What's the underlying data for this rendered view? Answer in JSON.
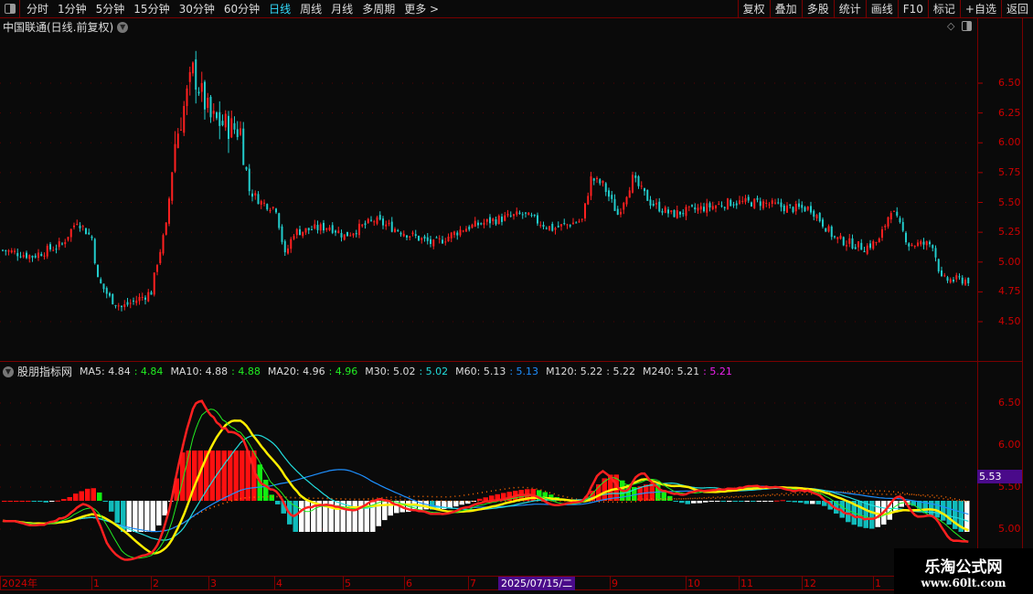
{
  "toolbar": {
    "periods": [
      "分时",
      "1分钟",
      "5分钟",
      "15分钟",
      "30分钟",
      "60分钟",
      "日线",
      "周线",
      "月线",
      "多周期",
      "更多 >"
    ],
    "active": "日线",
    "buttons": [
      "复权",
      "叠加",
      "多股",
      "统计",
      "画线",
      "F10",
      "标记",
      "+自选",
      "返回"
    ]
  },
  "title": "中国联通(日线.前复权)",
  "indicator": {
    "name": "股朋指标网",
    "items": [
      {
        "label": "MA5: 4.84",
        "value": ": 4.84",
        "color": "#22ee22"
      },
      {
        "label": "MA10: 4.88",
        "value": ": 4.88",
        "color": "#22ee22"
      },
      {
        "label": "MA20: 4.96",
        "value": ": 4.96",
        "color": "#22ee22"
      },
      {
        "label": "M30: 5.02",
        "value": ": 5.02",
        "color": "#22dddd"
      },
      {
        "label": "M60: 5.13",
        "value": ": 5.13",
        "color": "#1e90ff"
      },
      {
        "label": "M120: 5.22",
        "value": ": 5.22",
        "color": "#dddddd"
      },
      {
        "label": "M240: 5.21",
        "value": ": 5.21",
        "color": "#ee22ee"
      }
    ]
  },
  "price_axis": [
    "6.50",
    "6.25",
    "6.00",
    "5.75",
    "5.50",
    "5.25",
    "5.00",
    "4.75",
    "4.50"
  ],
  "ind_axis": [
    "6.50",
    "6.00",
    "5.50",
    "5.00"
  ],
  "current_price": "5.53",
  "time_axis": {
    "labels": [
      "2024年",
      "1",
      "2",
      "3",
      "4",
      "5",
      "6",
      "7",
      "9",
      "10",
      "11",
      "12",
      "1"
    ],
    "current_date": "2025/07/15/二"
  },
  "watermark": {
    "name": "乐淘公式网",
    "url": "www.60lt.com"
  },
  "colors": {
    "up": "#ff2020",
    "down": "#22cccc",
    "grid": "#7a0000",
    "axis_text": "#cc0000",
    "highlight": "#4a0a8a"
  },
  "chart_data": {
    "type": "candlestick",
    "security": "中国联通",
    "ylim": [
      4.4,
      6.8
    ],
    "close_trend": [
      [
        0,
        5.1
      ],
      [
        10,
        5.05
      ],
      [
        20,
        5.15
      ],
      [
        25,
        5.35
      ],
      [
        30,
        5.2
      ],
      [
        32,
        4.85
      ],
      [
        36,
        4.7
      ],
      [
        40,
        4.62
      ],
      [
        48,
        4.72
      ],
      [
        50,
        4.75
      ],
      [
        52,
        5.0
      ],
      [
        55,
        5.3
      ],
      [
        58,
        6.0
      ],
      [
        61,
        6.3
      ],
      [
        64,
        6.6
      ],
      [
        67,
        6.4
      ],
      [
        70,
        6.2
      ],
      [
        75,
        6.15
      ],
      [
        80,
        6.1
      ],
      [
        83,
        5.6
      ],
      [
        87,
        5.5
      ],
      [
        92,
        5.45
      ],
      [
        95,
        5.05
      ],
      [
        98,
        5.25
      ],
      [
        110,
        5.3
      ],
      [
        115,
        5.22
      ],
      [
        125,
        5.35
      ],
      [
        135,
        5.25
      ],
      [
        145,
        5.15
      ],
      [
        155,
        5.28
      ],
      [
        165,
        5.35
      ],
      [
        175,
        5.4
      ],
      [
        185,
        5.28
      ],
      [
        195,
        5.35
      ],
      [
        198,
        5.7
      ],
      [
        202,
        5.65
      ],
      [
        207,
        5.4
      ],
      [
        212,
        5.7
      ],
      [
        218,
        5.5
      ],
      [
        225,
        5.4
      ],
      [
        235,
        5.45
      ],
      [
        245,
        5.5
      ],
      [
        255,
        5.5
      ],
      [
        265,
        5.45
      ],
      [
        272,
        5.45
      ],
      [
        280,
        5.2
      ],
      [
        290,
        5.12
      ],
      [
        295,
        5.18
      ],
      [
        299,
        5.45
      ],
      [
        302,
        5.3
      ],
      [
        305,
        5.15
      ],
      [
        313,
        5.15
      ],
      [
        316,
        4.85
      ],
      [
        325,
        4.85
      ]
    ]
  }
}
